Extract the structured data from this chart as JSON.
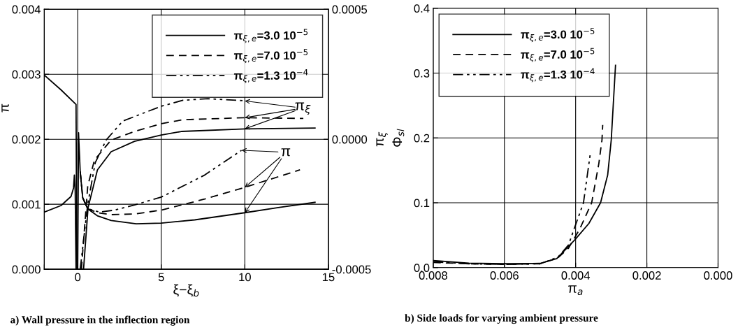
{
  "chart_data": [
    {
      "type": "line",
      "title": "a) Wall pressure in the inflection region",
      "xlabel": "ξ−ξ$_{b}$",
      "ylabel": "π",
      "y2label": "π$_{ξ}$",
      "xlim": [
        -2,
        15
      ],
      "xticks": [
        {
          "value": -2,
          "label": null
        },
        0,
        5,
        10,
        15
      ],
      "ylim": [
        0,
        0.004
      ],
      "yticks": [
        {
          "value": 0,
          "label": "0.000"
        },
        {
          "value": 0.001,
          "label": "0.001"
        },
        {
          "value": 0.002,
          "label": "0.002"
        },
        {
          "value": 0.003,
          "label": "0.003"
        },
        {
          "value": 0.004,
          "label": "0.004"
        }
      ],
      "y2lim": [
        -0.0005,
        0.0005
      ],
      "y2ticks": [
        {
          "value": -0.0005,
          "label": "-0.0005"
        },
        {
          "value": 0,
          "label": "0.0000"
        },
        {
          "value": 0.0005,
          "label": "0.0005"
        }
      ],
      "grid": true,
      "legend": "top right",
      "annotations": [
        {
          "text": "π$_{ξ}$",
          "x": 10,
          "y": 0.00259
        },
        {
          "text": "π",
          "x": 9.8,
          "y": 0.00183
        }
      ],
      "series": [
        {
          "name": "π$_{ξ,e}$=3.0 10$^{−5}$",
          "color": "#000000",
          "line_style": "solid",
          "x": [
            -2,
            -1,
            -0.4,
            -0.25,
            -0.2,
            -0.15,
            -0.1,
            0.0,
            0.05,
            0.15,
            0.3,
            0.6,
            1.2,
            2,
            3.5,
            5,
            7,
            10,
            12,
            14.2
          ],
          "values": [
            0.00088,
            0.00098,
            0.00112,
            0.00125,
            0.00145,
            0.0012,
            0.0,
            0.0,
            0.0021,
            0.0015,
            0.0011,
            0.00093,
            0.00082,
            0.00075,
            0.0007,
            0.00071,
            0.00076,
            0.00087,
            0.00095,
            0.00103
          ]
        },
        {
          "name": "π$_{ξ,e}$=7.0 10$^{−5}$",
          "color": "#000000",
          "line_style": "dashed",
          "x": [
            0.15,
            0.3,
            0.6,
            1.2,
            2,
            3.4,
            5,
            7.6,
            10,
            13.3
          ],
          "values": [
            0.0015,
            0.0011,
            0.00093,
            0.00087,
            0.00084,
            0.00085,
            0.00091,
            0.00108,
            0.00126,
            0.00153
          ]
        },
        {
          "name": "π$_{ξ,e}$=1.3 10$^{−4}$",
          "color": "#000000",
          "line_style": "dashdot",
          "x": [
            0.15,
            0.3,
            0.6,
            1.3,
            2.2,
            3.4,
            5,
            7.6,
            9.8
          ],
          "values": [
            0.0015,
            0.0011,
            0.00093,
            0.00088,
            0.00091,
            0.00099,
            0.00111,
            0.00145,
            0.00183
          ]
        },
        {
          "color": "#000000",
          "line_style": "solid",
          "axis": "y2",
          "x": [
            -2,
            -1,
            -0.1,
            -0.05,
            0.35,
            0.62,
            1.18,
            2.0,
            3.4,
            5,
            6.2,
            10,
            14.2
          ],
          "values": [
            0.000247,
            0.00019,
            0.000134,
            -0.0005,
            -0.0005,
            -0.000263,
            -0.000118,
            -4.8e-05,
            -8e-06,
            1.6e-05,
            3e-05,
            4e-05,
            4.3e-05
          ]
        },
        {
          "color": "#000000",
          "line_style": "dashed",
          "axis": "y2",
          "x": [
            0.22,
            0.6,
            1.0,
            2.0,
            3.4,
            5,
            6.3,
            10,
            13.5
          ],
          "values": [
            -0.0005,
            -0.00018,
            -8e-05,
            -3e-06,
            3e-05,
            6e-05,
            7.5e-05,
            8.3e-05,
            8e-05
          ]
        },
        {
          "color": "#000000",
          "line_style": "dashdot",
          "axis": "y2",
          "x": [
            0.15,
            0.6,
            1.05,
            1.7,
            2.7,
            5,
            6.3,
            7.8,
            10
          ],
          "values": [
            -0.0005,
            -0.00025,
            -9e-05,
            -3e-06,
            7e-05,
            0.000127,
            0.00015,
            0.000156,
            0.000148
          ]
        }
      ]
    },
    {
      "type": "line",
      "title": "b) Side loads for varying ambient pressure",
      "xlabel": "π$_{a}$",
      "ylabel": "Φ$_{sl}$",
      "xlim": [
        0.008,
        0.0
      ],
      "xticks": [
        {
          "value": 0.008,
          "label": "0.008"
        },
        {
          "value": 0.006,
          "label": "0.006"
        },
        {
          "value": 0.004,
          "label": "0.004"
        },
        {
          "value": 0.002,
          "label": "0.002"
        },
        {
          "value": 0.0,
          "label": "0.000"
        }
      ],
      "ylim": [
        0,
        0.4
      ],
      "yticks": [
        {
          "value": 0,
          "label": "0.0"
        },
        0.1,
        0.2,
        0.3,
        0.4
      ],
      "grid": true,
      "legend": "top left",
      "series": [
        {
          "name": "π$_{ξ,e}$=3.0 10$^{−5}$",
          "color": "#000000",
          "line_style": "solid",
          "x": [
            0.008,
            0.007,
            0.006,
            0.005,
            0.00453,
            0.00402,
            0.00363,
            0.0033,
            0.0031,
            0.003,
            0.00288
          ],
          "values": [
            0.011,
            0.007,
            0.006,
            0.0065,
            0.014,
            0.043,
            0.068,
            0.1,
            0.143,
            0.197,
            0.312
          ]
        },
        {
          "name": "π$_{ξ,e}$=7.0 10$^{−5}$",
          "color": "#000000",
          "line_style": "dashed",
          "x": [
            0.008,
            0.007,
            0.006,
            0.005,
            0.0045,
            0.0042,
            0.00388,
            0.00355,
            0.00335,
            0.00326,
            0.00324
          ],
          "values": [
            0.008,
            0.006,
            0.005,
            0.006,
            0.015,
            0.03,
            0.06,
            0.1,
            0.16,
            0.197,
            0.22
          ]
        },
        {
          "name": "π$_{ξ,e}$=1.3 10$^{−4}$",
          "color": "#000000",
          "line_style": "dashdot",
          "x": [
            0.008,
            0.007,
            0.006,
            0.005,
            0.0045,
            0.0042,
            0.00408,
            0.00378,
            0.00359
          ],
          "values": [
            0.009,
            0.006,
            0.005,
            0.006,
            0.016,
            0.035,
            0.054,
            0.1,
            0.175
          ]
        }
      ]
    }
  ]
}
